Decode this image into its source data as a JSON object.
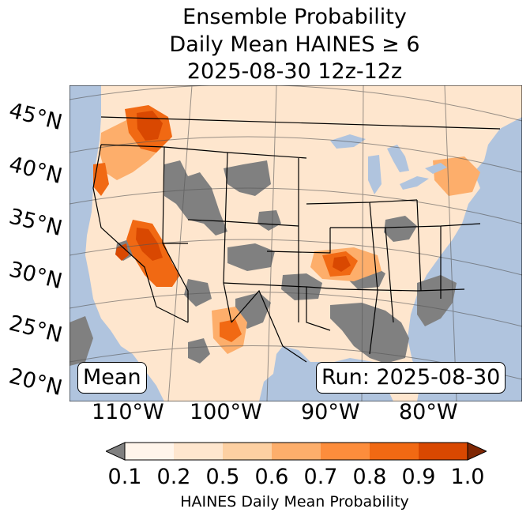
{
  "title": {
    "line1": "Ensemble Probability",
    "line2": "Daily Mean HAINES ≥ 6",
    "line3": "2025-08-30 12z-12z"
  },
  "map": {
    "lat_labels": [
      "45°N",
      "40°N",
      "35°N",
      "30°N",
      "25°N",
      "20°N"
    ],
    "lon_labels": [
      "110°W",
      "100°W",
      "90°W",
      "80°W"
    ],
    "stat_box": "Mean",
    "run_box": "Run: 2025-08-30",
    "colors": {
      "ocean": "#b0c4de",
      "below_threshold": "#808080",
      "state_border": "#000000",
      "lake": "#b0c4de"
    }
  },
  "colorbar": {
    "label": "HAINES Daily Mean Probability",
    "ticks": [
      "0.1",
      "0.2",
      "0.5",
      "0.6",
      "0.7",
      "0.8",
      "0.9",
      "1.0"
    ],
    "under_color": "#808080",
    "over_color": "#7f2704",
    "bin_colors": [
      "#fff5eb",
      "#fee6ce",
      "#fdd0a2",
      "#fdae6b",
      "#fd8d3c",
      "#f16913",
      "#d94801"
    ]
  }
}
